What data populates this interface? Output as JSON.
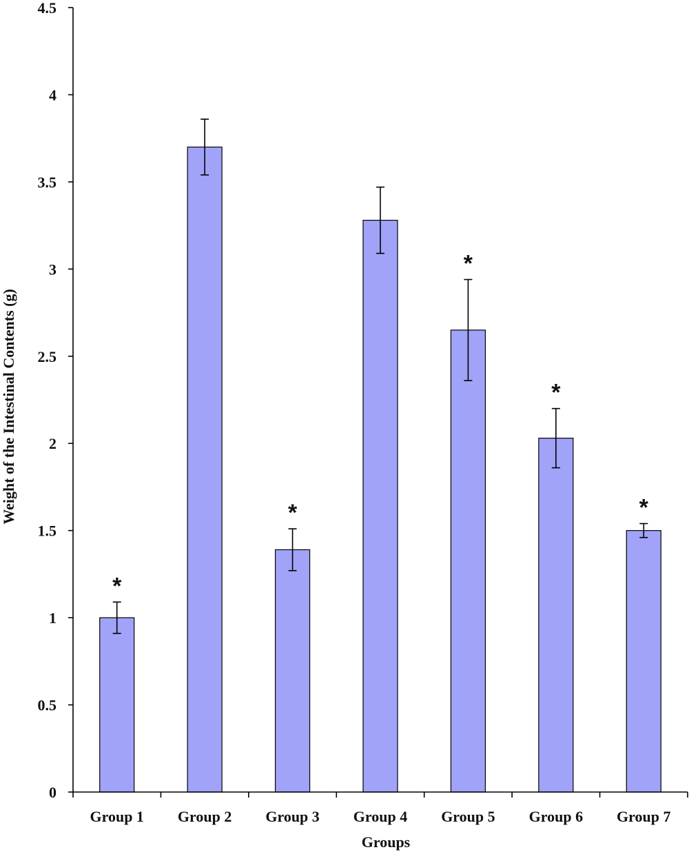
{
  "chart_data": {
    "type": "bar",
    "title": "",
    "xlabel": "Groups",
    "ylabel": "Weight of the Intestinal Contents (g)",
    "ylim": [
      0,
      4.5
    ],
    "yticks": [
      "0",
      "0.5",
      "1",
      "1.5",
      "2",
      "2.5",
      "3",
      "3.5",
      "4",
      "4.5"
    ],
    "categories": [
      "Group 1",
      "Group 2",
      "Group 3",
      "Group 4",
      "Group 5",
      "Group 6",
      "Group 7"
    ],
    "values": [
      1.0,
      3.7,
      1.39,
      3.28,
      2.65,
      2.03,
      1.5
    ],
    "error": [
      0.09,
      0.16,
      0.12,
      0.19,
      0.29,
      0.17,
      0.04
    ],
    "significance": [
      "*",
      "",
      "*",
      "",
      "*",
      "*",
      "*"
    ],
    "bar_color": "#a0a3f7",
    "grid": false,
    "legend": "none"
  }
}
